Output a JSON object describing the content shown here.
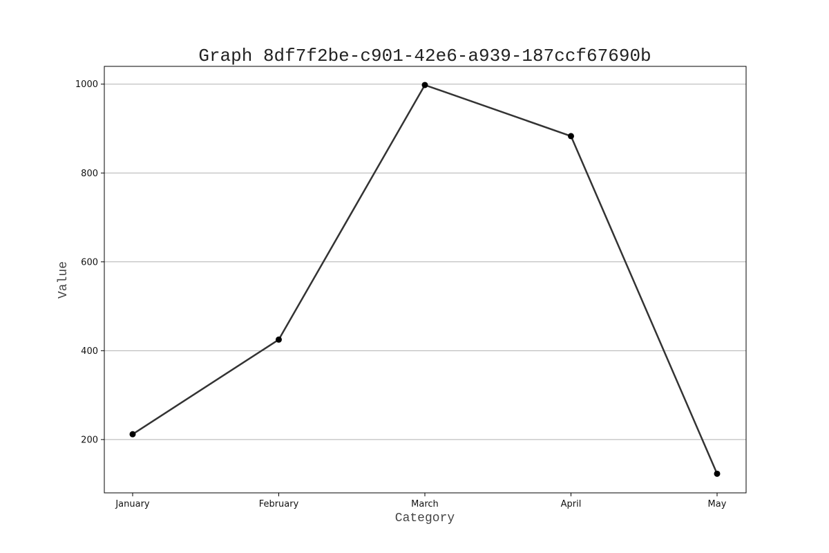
{
  "chart_data": {
    "type": "line",
    "title": "Graph 8df7f2be-c901-42e6-a939-187ccf67690b",
    "xlabel": "Category",
    "ylabel": "Value",
    "categories": [
      "January",
      "February",
      "March",
      "April",
      "May"
    ],
    "series": [
      {
        "values": [
          212,
          425,
          998,
          883,
          123
        ]
      }
    ],
    "ylim": [
      80,
      1040
    ],
    "yticks": [
      200,
      400,
      600,
      800,
      1000
    ],
    "grid": "y",
    "legend": "none",
    "colors": {
      "line": "#333333",
      "marker": "#000000",
      "grid": "#b0b0b0"
    }
  }
}
